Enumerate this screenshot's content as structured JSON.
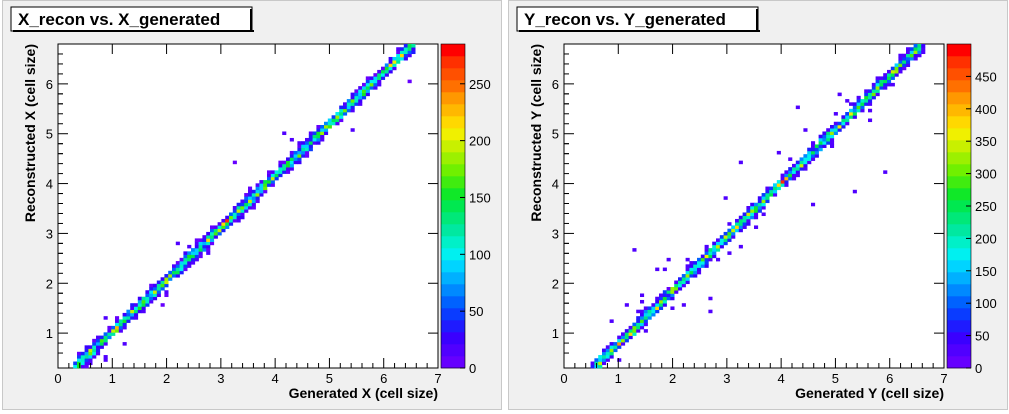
{
  "chart_data": [
    {
      "type": "heatmap",
      "title": "X_recon vs. X_generated",
      "xlabel": "Generated X (cell size)",
      "ylabel": "Reconstructed X (cell size)",
      "xlim": [
        0,
        7
      ],
      "ylim": [
        0.3,
        6.8
      ],
      "x_ticks": [
        "0",
        "1",
        "2",
        "3",
        "4",
        "5",
        "6",
        "7"
      ],
      "y_ticks": [
        "1",
        "2",
        "3",
        "4",
        "5",
        "6"
      ],
      "z_range": [
        0,
        285
      ],
      "z_ticks": [
        "0",
        "50",
        "100",
        "150",
        "200",
        "250"
      ],
      "diagonal": {
        "x_start": 0.3,
        "y_start": 0.3,
        "x_end": 6.55,
        "y_end": 6.8,
        "peak": 270
      },
      "grid": false
    },
    {
      "type": "heatmap",
      "title": "Y_recon vs. Y_generated",
      "xlabel": "Generated Y (cell size)",
      "ylabel": "Reconstructed Y (cell size)",
      "xlim": [
        0,
        7
      ],
      "ylim": [
        0.3,
        6.8
      ],
      "x_ticks": [
        "0",
        "1",
        "2",
        "3",
        "4",
        "5",
        "6",
        "7"
      ],
      "y_ticks": [
        "1",
        "2",
        "3",
        "4",
        "5",
        "6"
      ],
      "z_range": [
        0,
        500
      ],
      "z_ticks": [
        "0",
        "50",
        "100",
        "150",
        "200",
        "250",
        "300",
        "350",
        "400",
        "450"
      ],
      "diagonal": {
        "x_start": 0.55,
        "y_start": 0.3,
        "x_end": 6.6,
        "y_end": 6.8,
        "peak": 470
      },
      "grid": false
    }
  ],
  "palette": [
    "#6600ff",
    "#5000ff",
    "#3a00ff",
    "#1f1bff",
    "#0a3cff",
    "#0062ff",
    "#0089ff",
    "#00b0ff",
    "#00d4ff",
    "#00f0f0",
    "#00f0c8",
    "#00e8a0",
    "#00e878",
    "#00e850",
    "#10e828",
    "#40ec10",
    "#70f000",
    "#9cf000",
    "#c8f000",
    "#f0f000",
    "#ffd800",
    "#ffb800",
    "#ff9800",
    "#ff7000",
    "#ff5000",
    "#ff3000",
    "#ff0000"
  ]
}
